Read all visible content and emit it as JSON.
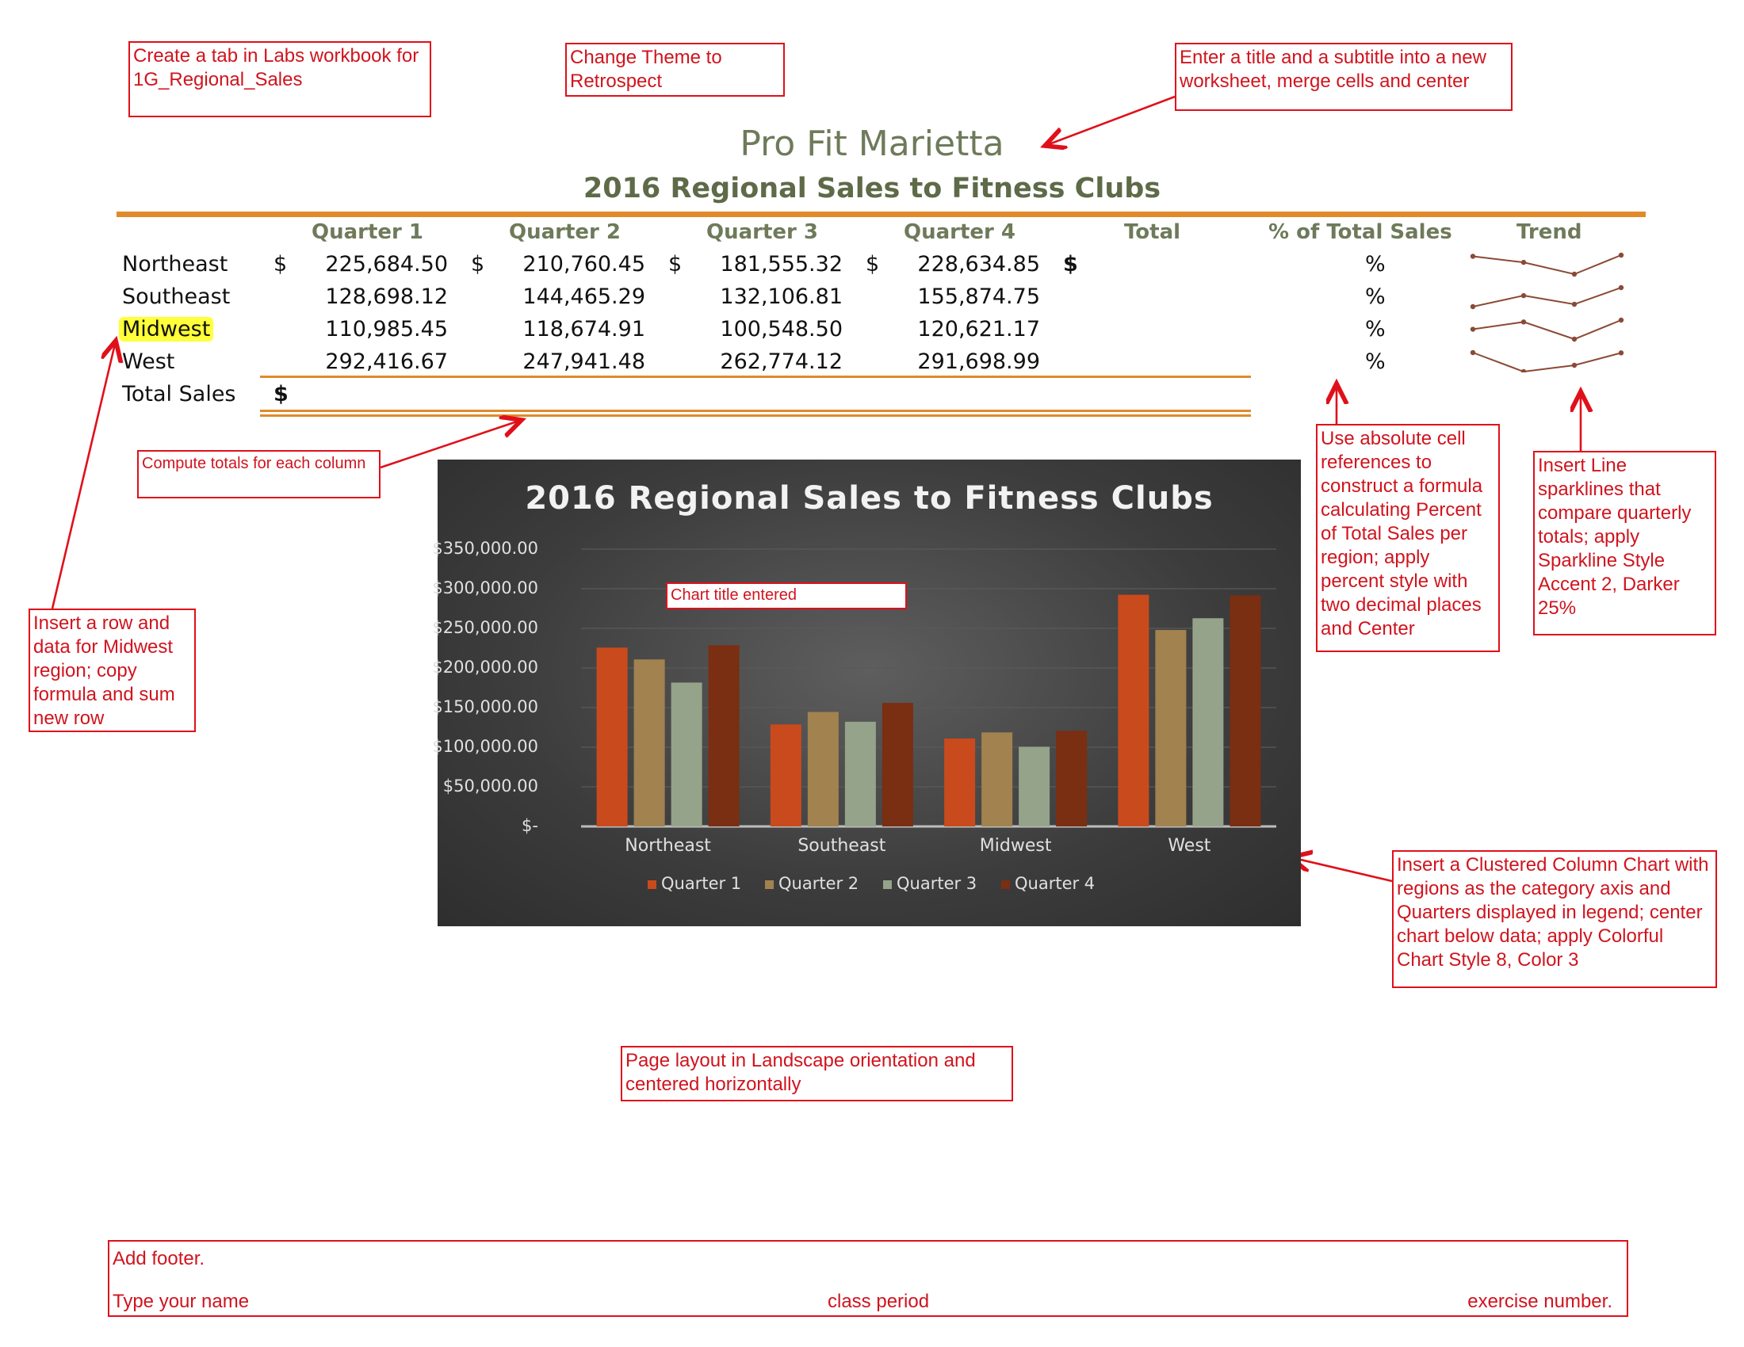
{
  "notes": {
    "tab": "Create a tab in Labs workbook for 1G_Regional_Sales",
    "theme": "Change Theme to Retrospect",
    "title_note": "Enter a title and a subtitle into a new worksheet, merge cells and center",
    "totals_note": "Compute totals for each column",
    "midwest_note": "Insert a row and data for Midwest region; copy formula and sum new row",
    "chart_title_note": "Chart title entered",
    "percent_note": "Use absolute cell references to construct a formula calculating Percent of Total Sales per region; apply percent style with two decimal places and Center",
    "sparkline_note": "Insert Line sparklines that compare quarterly totals; apply Sparkline Style Accent 2, Darker 25%",
    "chart_note": "Insert a Clustered Column Chart with regions as the category axis and Quarters displayed in legend; center chart below data; apply Colorful Chart Style 8, Color 3",
    "layout_note": "Page layout in Landscape orientation and centered horizontally"
  },
  "footer": {
    "line1": "Add footer.",
    "name": "Type your name",
    "period": "class period",
    "exercise": "exercise number."
  },
  "sheet": {
    "title": "Pro Fit Marietta",
    "subtitle": "2016 Regional Sales to Fitness Clubs",
    "headers": [
      "Quarter 1",
      "Quarter 2",
      "Quarter 3",
      "Quarter 4",
      "Total",
      "% of Total Sales",
      "Trend"
    ],
    "currency": "$",
    "percent": "%",
    "total_label": "Total Sales",
    "rows": [
      {
        "region": "Northeast",
        "values": [
          "225,684.50",
          "210,760.45",
          "181,555.32",
          "228,634.85"
        ]
      },
      {
        "region": "Southeast",
        "values": [
          "128,698.12",
          "144,465.29",
          "132,106.81",
          "155,874.75"
        ]
      },
      {
        "region": "Midwest",
        "values": [
          "110,985.45",
          "118,674.91",
          "100,548.50",
          "120,621.17"
        ]
      },
      {
        "region": "West",
        "values": [
          "292,416.67",
          "247,941.48",
          "262,774.12",
          "291,698.99"
        ]
      }
    ]
  },
  "sparkline_color": "#8b4a35",
  "chart_data": {
    "type": "bar",
    "title": "2016 Regional Sales to Fitness Clubs",
    "categories": [
      "Northeast",
      "Southeast",
      "Midwest",
      "West"
    ],
    "series": [
      {
        "name": "Quarter 1",
        "color": "#c94a1c",
        "values": [
          225684.5,
          128698.12,
          110985.45,
          292416.67
        ]
      },
      {
        "name": "Quarter 2",
        "color": "#a2824f",
        "values": [
          210760.45,
          144465.29,
          118674.91,
          247941.48
        ]
      },
      {
        "name": "Quarter 3",
        "color": "#94a38a",
        "values": [
          181555.32,
          132106.81,
          100548.5,
          262774.12
        ]
      },
      {
        "name": "Quarter 4",
        "color": "#7a2e12",
        "values": [
          228634.85,
          155874.75,
          120621.17,
          291698.99
        ]
      }
    ],
    "ylim": [
      0,
      350000
    ],
    "yticks": [
      "$-",
      "$50,000.00",
      "$100,000.00",
      "$150,000.00",
      "$200,000.00",
      "$250,000.00",
      "$300,000.00",
      "$350,000.00"
    ],
    "legend": "bottom",
    "grid": true
  }
}
